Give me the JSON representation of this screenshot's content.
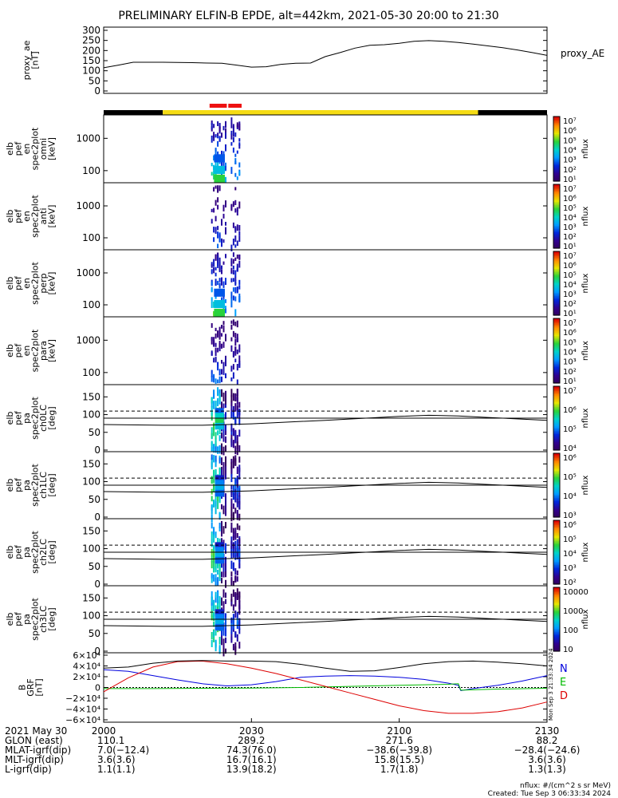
{
  "title": "PRELIMINARY ELFIN-B EPDE, alt=442km, 2021-05-30 20:00 to 21:30",
  "colors": {
    "axis": "#000000",
    "orbit_bar_dark": "#000000",
    "orbit_bar_yellow": "#f5dc14",
    "orbit_bar_red": "#ee1111",
    "grf_n": "#0000dd",
    "grf_e": "#00bb00",
    "grf_d": "#dd0000"
  },
  "orbit_bar": {
    "segments": [
      {
        "start_min": 0,
        "end_min": 12,
        "color": "dark"
      },
      {
        "start_min": 12,
        "end_min": 76,
        "color": "yellow"
      },
      {
        "start_min": 76,
        "end_min": 90,
        "color": "dark"
      }
    ],
    "science_marks": [
      {
        "start_min": 21.5,
        "end_min": 25.0
      },
      {
        "start_min": 25.3,
        "end_min": 28.0
      }
    ]
  },
  "chart_data": [
    {
      "type": "line",
      "panel": "proxy_ae",
      "ylabel": [
        "proxy_ae",
        "[nT]"
      ],
      "yticks": [
        "300",
        "250",
        "200",
        "150",
        "100",
        "50",
        "0"
      ],
      "ylim": [
        0,
        300
      ],
      "legend": "proxy_AE",
      "series": [
        {
          "x": [
            0,
            3,
            6,
            9,
            12,
            15,
            18,
            21,
            24,
            27,
            30,
            33,
            36,
            39,
            42,
            45,
            48,
            51,
            54,
            57,
            60,
            63,
            66,
            69,
            72,
            75,
            78,
            81,
            84,
            87,
            90
          ],
          "values": [
            115,
            128,
            142,
            142,
            142,
            141,
            140,
            138,
            137,
            128,
            118,
            120,
            132,
            137,
            138,
            170,
            190,
            212,
            226,
            229,
            236,
            246,
            249,
            246,
            240,
            232,
            223,
            214,
            203,
            190,
            176
          ]
        }
      ]
    },
    {
      "type": "heatmap",
      "panel": "en_spec2plot_omni",
      "ylabel": [
        "elb",
        "pef",
        "en",
        "spec2plot",
        "omni",
        "[keV]"
      ],
      "yticks": [
        "1000",
        "100"
      ],
      "yscale": "log",
      "colorbar": {
        "label": "nflux",
        "ticks": [
          "10⁷",
          "10⁶",
          "10⁵",
          "10⁴",
          "10³",
          "10²",
          "10¹"
        ]
      }
    },
    {
      "type": "heatmap",
      "panel": "en_spec2plot_anti",
      "ylabel": [
        "elb",
        "pef",
        "en",
        "spec2plot",
        "anti",
        "[keV]"
      ],
      "yticks": [
        "1000",
        "100"
      ],
      "yscale": "log",
      "colorbar": {
        "label": "nflux",
        "ticks": [
          "10⁷",
          "10⁶",
          "10⁵",
          "10⁴",
          "10³",
          "10²",
          "10¹"
        ]
      }
    },
    {
      "type": "heatmap",
      "panel": "en_spec2plot_perp",
      "ylabel": [
        "elb",
        "pef",
        "en",
        "spec2plot",
        "perp",
        "[keV]"
      ],
      "yticks": [
        "1000",
        "100"
      ],
      "yscale": "log",
      "colorbar": {
        "label": "nflux",
        "ticks": [
          "10⁷",
          "10⁶",
          "10⁵",
          "10⁴",
          "10³",
          "10²",
          "10¹"
        ]
      }
    },
    {
      "type": "heatmap",
      "panel": "en_spec2plot_para",
      "ylabel": [
        "elb",
        "pef",
        "en",
        "spec2plot",
        "para",
        "[keV]"
      ],
      "yticks": [
        "1000",
        "100"
      ],
      "yscale": "log",
      "colorbar": {
        "label": "nflux",
        "ticks": [
          "10⁷",
          "10⁶",
          "10⁵",
          "10⁴",
          "10³",
          "10²",
          "10¹"
        ]
      }
    },
    {
      "type": "heatmap",
      "panel": "pa_spec2plot_ch0LC",
      "ylabel": [
        "elb",
        "pef",
        "pa",
        "spec2plot",
        "ch0LC",
        "[deg]"
      ],
      "yticks": [
        "150",
        "100",
        "50",
        "0"
      ],
      "ylim": [
        0,
        180
      ],
      "colorbar": {
        "label": "nflux",
        "ticks": [
          "10⁷",
          "10⁶",
          "10⁵",
          "10⁴"
        ]
      }
    },
    {
      "type": "heatmap",
      "panel": "pa_spec2plot_ch1LC",
      "ylabel": [
        "elb",
        "pef",
        "pa",
        "spec2plot",
        "ch1LC",
        "[deg]"
      ],
      "yticks": [
        "150",
        "100",
        "50",
        "0"
      ],
      "ylim": [
        0,
        180
      ],
      "colorbar": {
        "label": "nflux",
        "ticks": [
          "10⁶",
          "10⁵",
          "10⁴",
          "10³"
        ]
      }
    },
    {
      "type": "heatmap",
      "panel": "pa_spec2plot_ch2LC",
      "ylabel": [
        "elb",
        "pef",
        "pa",
        "spec2plot",
        "ch2LC",
        "[deg]"
      ],
      "yticks": [
        "150",
        "100",
        "50",
        "0"
      ],
      "ylim": [
        0,
        180
      ],
      "colorbar": {
        "label": "nflux",
        "ticks": [
          "10⁶",
          "10⁵",
          "10⁴",
          "10³",
          "10²"
        ]
      }
    },
    {
      "type": "heatmap",
      "panel": "pa_spec2plot_ch3LC",
      "ylabel": [
        "elb",
        "pef",
        "pa",
        "spec2plot",
        "ch3LC",
        "[deg]"
      ],
      "yticks": [
        "150",
        "100",
        "50",
        "0"
      ],
      "ylim": [
        0,
        180
      ],
      "colorbar": {
        "label": "nflux",
        "ticks": [
          "10000",
          "1000",
          "100",
          "10"
        ]
      }
    },
    {
      "type": "line",
      "panel": "B_GRF",
      "ylabel": [
        "B",
        "GRF",
        "[nT]"
      ],
      "yticks": [
        "6×10⁴",
        "4×10⁴",
        "2×10⁴",
        "0",
        "−2×10⁴",
        "−4×10⁴",
        "−6×10⁴"
      ],
      "ylim": [
        -60000,
        60000
      ],
      "legend": [
        "N",
        "E",
        "D"
      ],
      "series": [
        {
          "name": "N",
          "x": [
            0,
            5,
            10,
            15,
            20,
            25,
            30,
            35,
            40,
            45,
            50,
            55,
            60,
            65,
            70,
            72,
            72.5,
            75,
            80,
            85,
            90
          ],
          "values": [
            33000,
            30000,
            22000,
            14000,
            7000,
            3000,
            5000,
            11000,
            19000,
            21000,
            22000,
            21000,
            19000,
            15000,
            8000,
            4000,
            -6000,
            -2000,
            4000,
            12000,
            22000
          ]
        },
        {
          "name": "E",
          "x": [
            0,
            10,
            20,
            30,
            40,
            50,
            60,
            65,
            70,
            72,
            72.5,
            80,
            90
          ],
          "values": [
            -2000,
            -2000,
            -1500,
            -1000,
            0,
            2000,
            4000,
            5000,
            6000,
            7000,
            -5000,
            -3000,
            -1500
          ]
        },
        {
          "name": "D",
          "x": [
            0,
            5,
            10,
            15,
            20,
            25,
            30,
            35,
            40,
            45,
            50,
            55,
            60,
            65,
            70,
            75,
            80,
            85,
            90
          ],
          "values": [
            -8000,
            18000,
            38000,
            48000,
            49000,
            44000,
            36000,
            26000,
            14000,
            2000,
            -10000,
            -22000,
            -34000,
            -43000,
            -48000,
            -48000,
            -45000,
            -38000,
            -27000
          ]
        },
        {
          "name": "",
          "x": [
            0,
            5,
            10,
            15,
            20,
            25,
            30,
            35,
            40,
            45,
            50,
            55,
            60,
            65,
            70,
            75,
            80,
            85,
            90
          ],
          "values": [
            36000,
            38000,
            45000,
            49000,
            50000,
            49000,
            49000,
            48000,
            43000,
            36000,
            30000,
            31000,
            37000,
            44000,
            48000,
            49000,
            47000,
            44000,
            40000
          ]
        }
      ]
    }
  ],
  "pa_reference_lines": {
    "solid_upper": 90,
    "dashed": 110,
    "solid_lower": 72,
    "loss_cone_curve": {
      "x": [
        0,
        12,
        20,
        30,
        45,
        60,
        66,
        72,
        78,
        90
      ],
      "values": [
        72,
        70,
        70,
        74,
        84,
        95,
        98,
        96,
        92,
        84
      ]
    }
  },
  "x_axis": {
    "date": "2021 May 30",
    "ticks": [
      {
        "min": 0,
        "label": "2000"
      },
      {
        "min": 30,
        "label": "2030"
      },
      {
        "min": 60,
        "label": "2100"
      },
      {
        "min": 90,
        "label": "2130"
      }
    ]
  },
  "ephemeris": [
    {
      "label": "GLON (east)",
      "values": [
        "110.1",
        "289.2",
        "271.6",
        "88.2"
      ]
    },
    {
      "label": "MLAT-igrf(dip)",
      "values": [
        "7.0(−12.4)",
        "74.3(76.0)",
        "−38.6(−39.8)",
        "−28.4(−24.6)"
      ]
    },
    {
      "label": "MLT-igrf(dip)",
      "values": [
        "3.6(3.6)",
        "16.7(16.1)",
        "15.8(15.5)",
        "3.6(3.6)"
      ]
    },
    {
      "label": "L-igrf(dip)",
      "values": [
        "1.1(1.1)",
        "13.9(18.2)",
        "1.7(1.8)",
        "1.3(1.3)"
      ]
    }
  ],
  "footer": {
    "units": "nflux: #/(cm^2 s sr MeV)",
    "created": "Created: Tue Sep  3 06:33:34 2024",
    "side_stamp": "Mon Sep  3 21:33:34 2024"
  }
}
